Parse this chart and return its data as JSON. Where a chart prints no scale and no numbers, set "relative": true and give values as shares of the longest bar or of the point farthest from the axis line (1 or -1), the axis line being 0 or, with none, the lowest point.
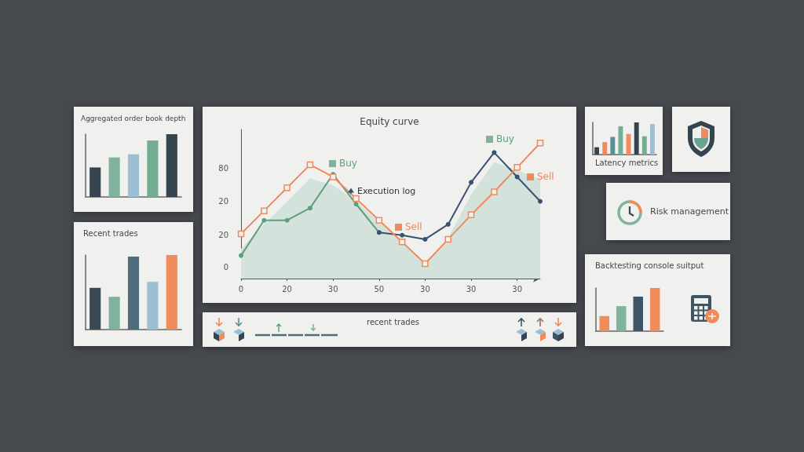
{
  "chart_data": [
    {
      "type": "line",
      "title": "Equity curve",
      "relative": true,
      "categories": [
        "0",
        null,
        "20",
        null,
        "30",
        null,
        "50",
        null,
        "30",
        null,
        "30",
        null,
        "30",
        null
      ],
      "series": [
        {
          "type": "area",
          "color": "#d3e3dc",
          "marker": "none",
          "values": [
            0.22,
            0.4,
            0.57,
            0.74,
            0.69,
            0.57,
            0.42,
            0.27,
            0.11,
            0.3,
            0.62,
            0.86,
            0.8,
            0.73
          ]
        },
        {
          "color": "#5e9e7e",
          "marker": "circle",
          "values": [
            0.17,
            0.43,
            0.43,
            0.52,
            0.77,
            0.55,
            0.34,
            null,
            null,
            null,
            null,
            null,
            null,
            null
          ]
        },
        {
          "color": "#3b5170",
          "marker": "circle",
          "values": [
            null,
            null,
            null,
            null,
            null,
            null,
            0.34,
            0.32,
            0.29,
            0.4,
            0.71,
            0.93,
            0.75,
            0.57
          ]
        },
        {
          "color": "#f08a5d",
          "marker": "square",
          "values": [
            0.33,
            0.5,
            0.67,
            0.84,
            0.75,
            0.59,
            0.43,
            0.27,
            0.11,
            0.29,
            0.47,
            0.64,
            0.82,
            1
          ]
        }
      ],
      "annotations": [
        "0",
        "20",
        "20",
        "80",
        "Buy",
        "Execution log",
        "Sell",
        "Buy",
        "Sell"
      ]
    },
    {
      "type": "bar",
      "title": "Aggregated order book depth",
      "relative": true,
      "categories": [
        null,
        null,
        null,
        null,
        null
      ],
      "values": [
        0.47,
        0.63,
        0.68,
        0.9,
        1
      ],
      "colors": [
        "#36444f",
        "#7fb39c",
        "#9dbfd3",
        "#73ad92",
        "#36444f"
      ]
    },
    {
      "type": "bar",
      "title": "Recent trades",
      "relative": true,
      "categories": [
        null,
        null,
        null,
        null,
        null
      ],
      "values": [
        0.56,
        0.44,
        0.98,
        0.64,
        1
      ],
      "colors": [
        "#3a4a55",
        "#7fb39c",
        "#4f6e7c",
        "#9dbfd3",
        "#f08c5c"
      ]
    },
    {
      "type": "bar",
      "title": "Latency metrics",
      "relative": true,
      "categories": [
        null,
        null,
        null,
        null,
        null,
        null,
        null,
        null
      ],
      "values": [
        0.23,
        0.39,
        0.55,
        0.88,
        0.64,
        1,
        0.57,
        0.95
      ],
      "colors": [
        "#36444f",
        "#f08c5c",
        "#5a8f96",
        "#73ad92",
        "#f08c5c",
        "#36444f",
        "#73ad92",
        "#9dbfd3"
      ]
    },
    {
      "type": "bar",
      "title": "Backtesting console suitput",
      "relative": true,
      "categories": [
        null,
        null,
        null,
        null
      ],
      "values": [
        0.35,
        0.58,
        0.8,
        1
      ],
      "colors": [
        "#f08c5c",
        "#7fb39c",
        "#3e5566",
        "#f08c5c"
      ]
    },
    {
      "type": "other",
      "title": "Risk management"
    },
    {
      "type": "other",
      "title": "recent trades"
    }
  ]
}
